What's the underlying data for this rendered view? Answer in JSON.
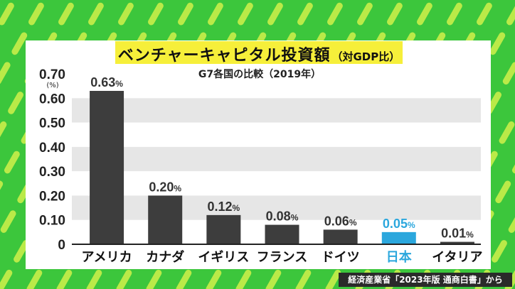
{
  "title": "ベンチャーキャピタル投資額",
  "title_suffix": "（対GDP比）",
  "subtitle": "G7各国の比較（2019年）",
  "source": "経済産業省「2023年版 通商白書」から",
  "colors": {
    "background": "#3cc63c",
    "stripe": "#c8ee4a",
    "title_box": "#f6ef3a",
    "bar": "#3d3d3d",
    "highlight": "#2ba7dd",
    "band": "#e6e6e6"
  },
  "chart_data": {
    "type": "bar",
    "title": "ベンチャーキャピタル投資額（対GDP比）",
    "subtitle": "G7各国の比較（2019年）",
    "ylabel": "(%)",
    "xlabel": "",
    "ylim": [
      0,
      0.7
    ],
    "yticks": [
      "0",
      "0.10",
      "0.20",
      "0.30",
      "0.40",
      "0.50",
      "0.60",
      "0.70"
    ],
    "categories": [
      "アメリカ",
      "カナダ",
      "イギリス",
      "フランス",
      "ドイツ",
      "日本",
      "イタリア"
    ],
    "values": [
      0.63,
      0.2,
      0.12,
      0.08,
      0.06,
      0.05,
      0.01
    ],
    "value_labels": [
      "0.63",
      "0.20",
      "0.12",
      "0.08",
      "0.06",
      "0.05",
      "0.01"
    ],
    "value_unit": "%",
    "highlight_category": "日本",
    "grid": "alternating horizontal bands",
    "legend": "none"
  }
}
